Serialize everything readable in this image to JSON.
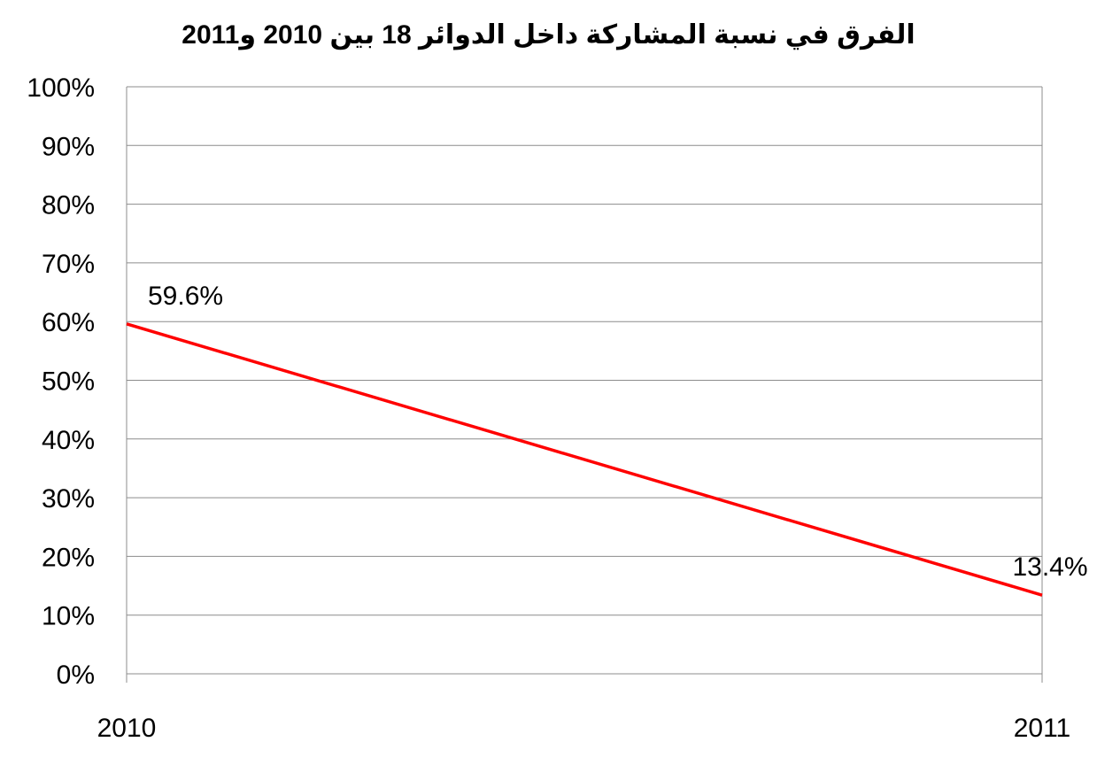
{
  "chart_data": {
    "type": "line",
    "title": "الفرق في نسبة المشاركة داخل الدوائر 18 بين 2010 و2011",
    "xlabel": "",
    "ylabel": "",
    "categories": [
      "2010",
      "2011"
    ],
    "series": [
      {
        "values": [
          59.6,
          13.4
        ],
        "color": "#ff0000",
        "data_labels": [
          "59.6%",
          "13.4%"
        ]
      }
    ],
    "ylim": [
      0,
      100
    ],
    "yticks": [
      0,
      10,
      20,
      30,
      40,
      50,
      60,
      70,
      80,
      90,
      100
    ],
    "ytick_labels": [
      "0%",
      "10%",
      "20%",
      "30%",
      "40%",
      "50%",
      "60%",
      "70%",
      "80%",
      "90%",
      "100%"
    ],
    "grid": true,
    "legend": "none"
  }
}
